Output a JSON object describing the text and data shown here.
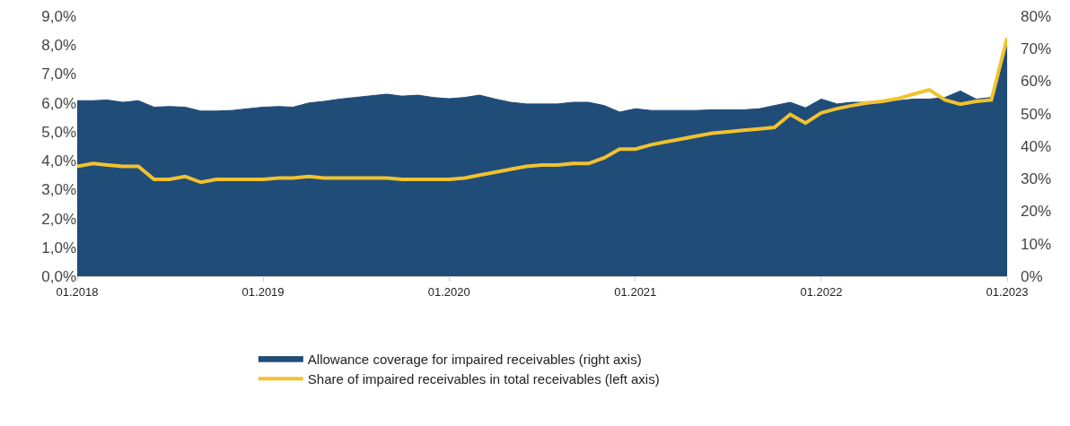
{
  "chart_data": {
    "type": "line",
    "x": [
      "2018-01",
      "2018-02",
      "2018-03",
      "2018-04",
      "2018-05",
      "2018-06",
      "2018-07",
      "2018-08",
      "2018-09",
      "2018-10",
      "2018-11",
      "2018-12",
      "2019-01",
      "2019-02",
      "2019-03",
      "2019-04",
      "2019-05",
      "2019-06",
      "2019-07",
      "2019-08",
      "2019-09",
      "2019-10",
      "2019-11",
      "2019-12",
      "2020-01",
      "2020-02",
      "2020-03",
      "2020-04",
      "2020-05",
      "2020-06",
      "2020-07",
      "2020-08",
      "2020-09",
      "2020-10",
      "2020-11",
      "2020-12",
      "2021-01",
      "2021-02",
      "2021-03",
      "2021-04",
      "2021-05",
      "2021-06",
      "2021-07",
      "2021-08",
      "2021-09",
      "2021-10",
      "2021-11",
      "2021-12",
      "2022-01",
      "2022-02",
      "2022-03",
      "2022-04",
      "2022-05",
      "2022-06",
      "2022-07",
      "2022-08",
      "2022-09",
      "2022-10",
      "2022-11",
      "2022-12",
      "2023-01"
    ],
    "series": [
      {
        "name": "Allowance coverage for impaired receivables (right axis)",
        "type": "area",
        "axis": "y2",
        "color": "#204c78",
        "values": [
          54,
          54,
          54.2,
          53.5,
          54,
          52,
          52.2,
          52,
          50.8,
          50.8,
          51,
          51.5,
          52,
          52.2,
          52,
          53.3,
          53.8,
          54.5,
          55,
          55.5,
          56,
          55.4,
          55.7,
          55,
          54.6,
          55,
          55.7,
          54.5,
          53.5,
          53,
          53,
          53,
          53.5,
          53.5,
          52.5,
          50.5,
          51.5,
          51,
          51,
          51,
          51,
          51.2,
          51.2,
          51.2,
          51.5,
          52.5,
          53.5,
          51.8,
          54.5,
          53,
          53.5,
          53.5,
          54,
          54,
          54.5,
          54.5,
          55,
          57,
          54.5,
          55,
          71
        ]
      },
      {
        "name": "Share of impaired receivables in total receivables (left axis)",
        "color": "#f0c22e",
        "values": [
          3.8,
          3.9,
          3.85,
          3.8,
          3.8,
          3.35,
          3.35,
          3.45,
          3.25,
          3.35,
          3.35,
          3.35,
          3.35,
          3.4,
          3.4,
          3.45,
          3.4,
          3.4,
          3.4,
          3.4,
          3.4,
          3.35,
          3.35,
          3.35,
          3.35,
          3.4,
          3.5,
          3.6,
          3.7,
          3.8,
          3.85,
          3.85,
          3.9,
          3.9,
          4.1,
          4.4,
          4.4,
          4.55,
          4.65,
          4.75,
          4.85,
          4.95,
          5.0,
          5.05,
          5.1,
          5.15,
          5.6,
          5.3,
          5.65,
          5.8,
          5.9,
          6.0,
          6.05,
          6.15,
          6.3,
          6.45,
          6.1,
          5.95,
          6.05,
          6.1,
          8.25
        ]
      }
    ],
    "xlim": [
      "2018-01",
      "2023-01"
    ],
    "xticks": [
      {
        "value": "2018-01",
        "label": "01.2018"
      },
      {
        "value": "2019-01",
        "label": "01.2019"
      },
      {
        "value": "2020-01",
        "label": "01.2020"
      },
      {
        "value": "2021-01",
        "label": "01.2021"
      },
      {
        "value": "2022-01",
        "label": "01.2022"
      },
      {
        "value": "2023-01",
        "label": "01.2023"
      }
    ],
    "ylim": [
      0,
      9
    ],
    "yticks": [
      {
        "value": 0,
        "label": "0,0%"
      },
      {
        "value": 1,
        "label": "1,0%"
      },
      {
        "value": 2,
        "label": "2,0%"
      },
      {
        "value": 3,
        "label": "3,0%"
      },
      {
        "value": 4,
        "label": "4,0%"
      },
      {
        "value": 5,
        "label": "5,0%"
      },
      {
        "value": 6,
        "label": "6,0%"
      },
      {
        "value": 7,
        "label": "7,0%"
      },
      {
        "value": 8,
        "label": "8,0%"
      },
      {
        "value": 9,
        "label": "9,0%"
      }
    ],
    "y2lim": [
      0,
      80
    ],
    "y2ticks": [
      {
        "value": 0,
        "label": "0%"
      },
      {
        "value": 10,
        "label": "10%"
      },
      {
        "value": 20,
        "label": "20%"
      },
      {
        "value": 30,
        "label": "30%"
      },
      {
        "value": 40,
        "label": "40%"
      },
      {
        "value": 50,
        "label": "50%"
      },
      {
        "value": 60,
        "label": "60%"
      },
      {
        "value": 70,
        "label": "70%"
      },
      {
        "value": 80,
        "label": "80%"
      }
    ],
    "grid": false,
    "legend": "bottom"
  }
}
